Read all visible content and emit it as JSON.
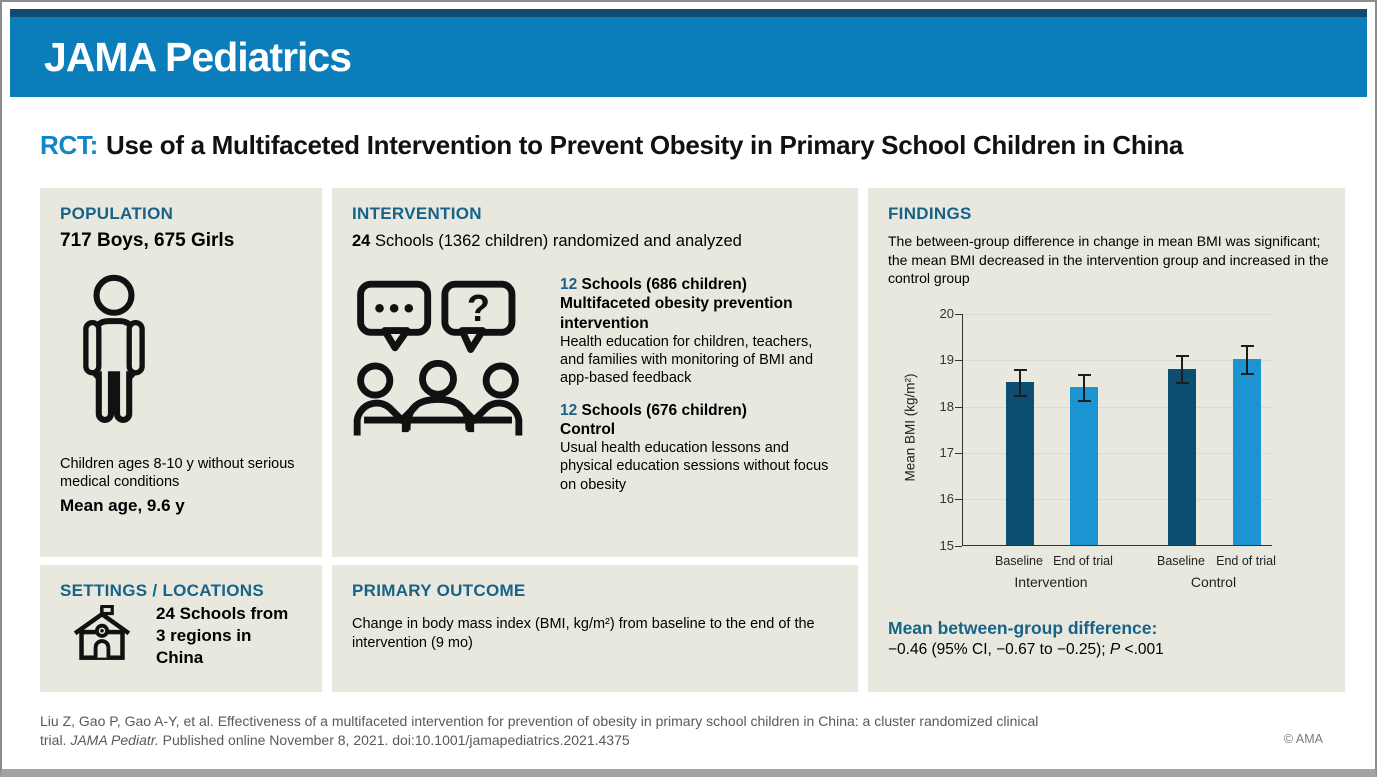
{
  "masthead": {
    "brand": "JAMA Pediatrics"
  },
  "title": {
    "tag": "RCT:",
    "text": "Use of a Multifaceted Intervention to Prevent Obesity in Primary School Children in China"
  },
  "population": {
    "heading": "POPULATION",
    "subtitle": "717 Boys, 675 Girls",
    "icon": "person-icon",
    "description": "Children ages 8-10 y without serious medical conditions",
    "mean_age": "Mean age, 9.6 y"
  },
  "intervention": {
    "heading": "INTERVENTION",
    "lead_bold": "24",
    "lead_rest": " Schools (1362 children) randomized and analyzed",
    "icon": "discussion-group-icon",
    "arms": [
      {
        "number": "12",
        "schools": " Schools (686 children)",
        "name": "Multifaceted obesity prevention intervention",
        "description": "Health education for children, teachers, and families with monitoring of BMI and app-based feedback"
      },
      {
        "number": "12",
        "schools": " Schools (676 children)",
        "name": "Control",
        "description": "Usual health education lessons and physical education sessions without focus on obesity"
      }
    ]
  },
  "settings": {
    "heading": "SETTINGS / LOCATIONS",
    "icon": "school-icon",
    "line1": "24 Schools from",
    "line2": "3 regions in China"
  },
  "primary_outcome": {
    "heading": "PRIMARY OUTCOME",
    "text": "Change in body mass index (BMI, kg/m²) from baseline to the end of the intervention (9 mo)"
  },
  "findings": {
    "heading": "FINDINGS",
    "summary": "The between-group difference in change in mean BMI was significant; the mean BMI decreased in the intervention group and increased in the control group",
    "difference_label": "Mean between-group difference:",
    "difference_value_pre": "−0.46 (95% CI, −0.67 to −0.25); ",
    "difference_p": "P",
    "difference_p_rest": " <.001"
  },
  "chart_data": {
    "type": "bar",
    "title": "",
    "xlabel": "",
    "ylabel": "Mean BMI (kg/m²)",
    "ylim": [
      15,
      20
    ],
    "yticks": [
      15,
      16,
      17,
      18,
      19,
      20
    ],
    "grid": true,
    "groups": [
      {
        "label": "Intervention",
        "bars": [
          {
            "label": "Baseline",
            "value": 18.5,
            "ci_low": 18.22,
            "ci_high": 18.78,
            "color": "#0b4e71"
          },
          {
            "label": "End of trial",
            "value": 18.4,
            "ci_low": 18.12,
            "ci_high": 18.68,
            "color": "#1d94d2"
          }
        ]
      },
      {
        "label": "Control",
        "bars": [
          {
            "label": "Baseline",
            "value": 18.8,
            "ci_low": 18.52,
            "ci_high": 19.1,
            "color": "#0b4e71"
          },
          {
            "label": "End of trial",
            "value": 19.0,
            "ci_low": 18.7,
            "ci_high": 19.3,
            "color": "#1d94d2"
          }
        ]
      }
    ]
  },
  "footer": {
    "citation_line1": "Liu Z, Gao P, Gao A-Y, et al. Effectiveness of a multifaceted intervention for prevention of obesity in primary school children in China: a cluster randomized clinical",
    "citation_line2_pre": "trial. ",
    "citation_line2_italic": "JAMA Pediatr.",
    "citation_line2_post": " Published online November 8, 2021. doi:10.1001/jamapediatrics.2021.4375",
    "copyright": "© AMA"
  },
  "colors": {
    "band_blue": "#0b7dba",
    "navy_strip": "#114a70",
    "accent_blue": "#0d87c5",
    "heading_blue": "#176388",
    "panel_background": "#e9e8df",
    "bar_dark": "#0b4e71",
    "bar_light": "#1d94d2"
  }
}
